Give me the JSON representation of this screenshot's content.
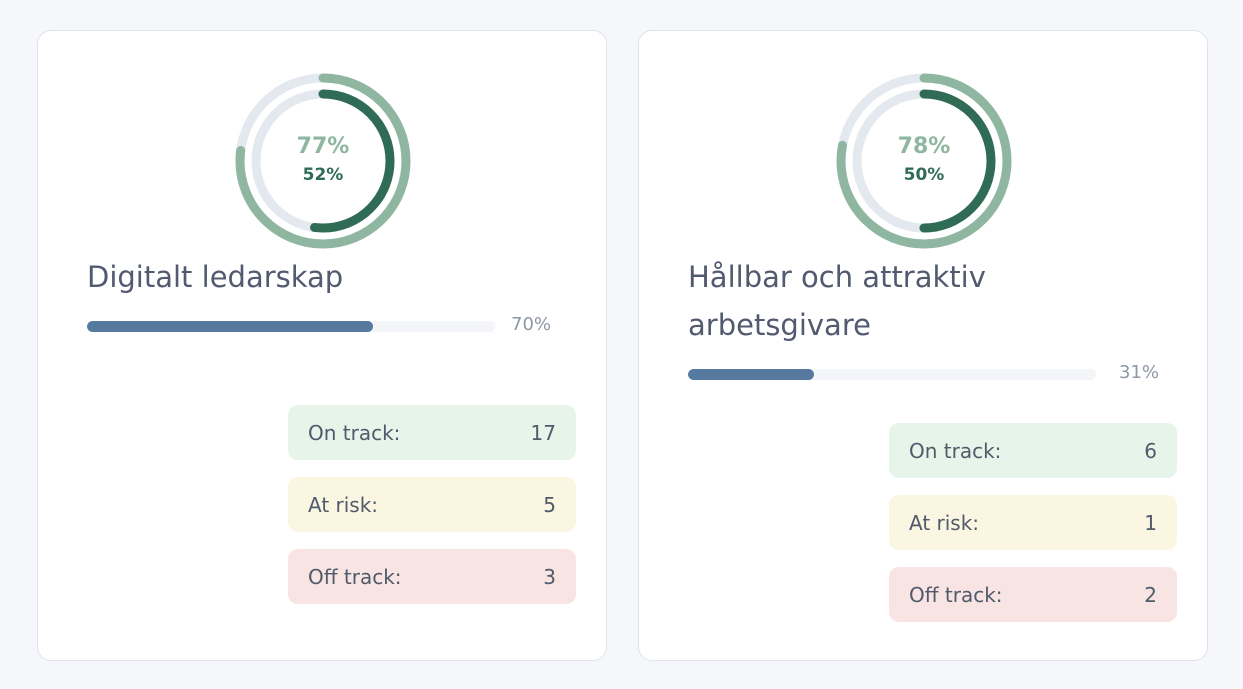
{
  "cards": [
    {
      "title": "Digitalt ledarskap",
      "outer_percent_label": "77%",
      "outer_percent": 77,
      "inner_percent_label": "52%",
      "inner_percent": 52,
      "progress_label": "70%",
      "progress_percent": 70,
      "statuses": [
        {
          "label": "On track:",
          "count": "17"
        },
        {
          "label": "At risk:",
          "count": "5"
        },
        {
          "label": "Off track:",
          "count": "3"
        }
      ]
    },
    {
      "title": "Hållbar och attraktiv arbetsgivare",
      "outer_percent_label": "78%",
      "outer_percent": 78,
      "inner_percent_label": "50%",
      "inner_percent": 50,
      "progress_label": "31%",
      "progress_percent": 31,
      "statuses": [
        {
          "label": "On track:",
          "count": "6"
        },
        {
          "label": "At risk:",
          "count": "1"
        },
        {
          "label": "Off track:",
          "count": "2"
        }
      ]
    }
  ],
  "colors": {
    "outer_ring": "#8fb6a0",
    "inner_ring": "#2f6b55",
    "ring_track": "#e4e8ef",
    "progress": "#56799f",
    "on_track_bg": "#e7f4ea",
    "at_risk_bg": "#fbf6e1",
    "off_track_bg": "#f8e4e2"
  }
}
